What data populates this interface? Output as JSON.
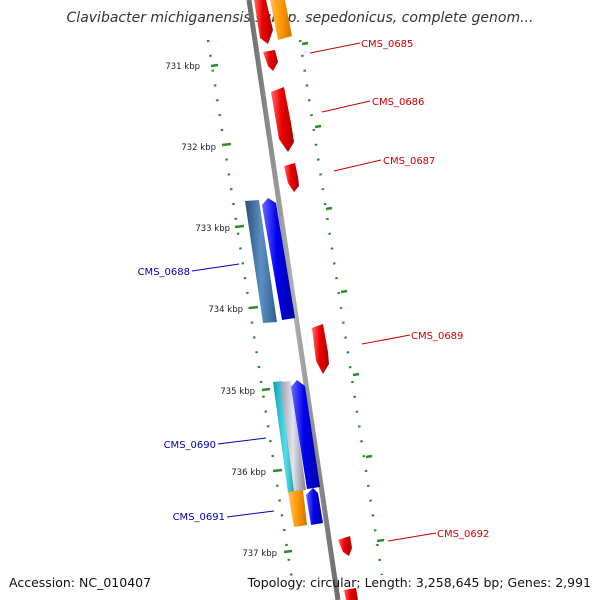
{
  "title": "Clavibacter michiganensis subsp. sepedonicus, complete genom...",
  "footer": {
    "accession": "Accession: NC_010407",
    "summary": "Topology: circular; Length: 3,258,645 bp; Genes: 2,991"
  },
  "colors": {
    "forward_gene": "#e80000",
    "forward_label": "#cc0000",
    "reverse_gene": "#0000ee",
    "reverse_label": "#0000bb",
    "tick": "#2d8a2d",
    "backbone": "#8c8c8c",
    "orange_feature": "#ff9900",
    "cyan_feature": "#22bbcc",
    "steel_feature": "#4477aa"
  },
  "ticks": [
    "731 kbp",
    "732 kbp",
    "733 kbp",
    "734 kbp",
    "735 kbp",
    "736 kbp",
    "737 kbp"
  ],
  "genes": {
    "cms_0685": "CMS_0685",
    "cms_0686": "CMS_0686",
    "cms_0687": "CMS_0687",
    "cms_0688": "CMS_0688",
    "cms_0689": "CMS_0689",
    "cms_0690": "CMS_0690",
    "cms_0691": "CMS_0691",
    "cms_0692": "CMS_0692"
  }
}
